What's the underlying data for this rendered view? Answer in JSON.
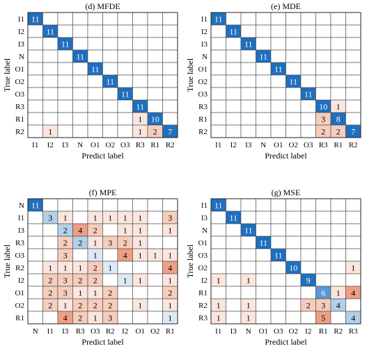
{
  "colors": {
    "diag_dark": "#1f6fbf",
    "blue_mid": "#5b97d4",
    "blue_light": "#b3cfe9",
    "blue_pale": "#dde9f5",
    "red_pale": "#fbe6df",
    "red_light": "#f6cdbd",
    "red_mid": "#ee9f84",
    "grid": "#444444"
  },
  "chart_data": [
    {
      "type": "heatmap",
      "title": "(d) MFDE",
      "xlabel": "Predict label",
      "ylabel": "True label",
      "row_labels": [
        "I1",
        "I2",
        "I3",
        "N",
        "O1",
        "O2",
        "O3",
        "R3",
        "R1",
        "R2"
      ],
      "col_labels": [
        "I1",
        "I2",
        "I3",
        "N",
        "O1",
        "O2",
        "O3",
        "R3",
        "R1",
        "R2"
      ],
      "matrix": [
        [
          11,
          0,
          0,
          0,
          0,
          0,
          0,
          0,
          0,
          0
        ],
        [
          0,
          11,
          0,
          0,
          0,
          0,
          0,
          0,
          0,
          0
        ],
        [
          0,
          0,
          11,
          0,
          0,
          0,
          0,
          0,
          0,
          0
        ],
        [
          0,
          0,
          0,
          11,
          0,
          0,
          0,
          0,
          0,
          0
        ],
        [
          0,
          0,
          0,
          0,
          11,
          0,
          0,
          0,
          0,
          0
        ],
        [
          0,
          0,
          0,
          0,
          0,
          11,
          0,
          0,
          0,
          0
        ],
        [
          0,
          0,
          0,
          0,
          0,
          0,
          11,
          0,
          0,
          0
        ],
        [
          0,
          0,
          0,
          0,
          0,
          0,
          0,
          11,
          0,
          0
        ],
        [
          0,
          0,
          0,
          0,
          0,
          0,
          0,
          1,
          10,
          0
        ],
        [
          0,
          1,
          0,
          0,
          0,
          0,
          0,
          1,
          2,
          7
        ]
      ]
    },
    {
      "type": "heatmap",
      "title": "(e) MDE",
      "xlabel": "Predict label",
      "ylabel": "True label",
      "row_labels": [
        "I1",
        "I2",
        "I3",
        "N",
        "O1",
        "O2",
        "O3",
        "R3",
        "R1",
        "R2"
      ],
      "col_labels": [
        "I1",
        "I2",
        "I3",
        "N",
        "O1",
        "O2",
        "O3",
        "R3",
        "R1",
        "R2"
      ],
      "matrix": [
        [
          11,
          0,
          0,
          0,
          0,
          0,
          0,
          0,
          0,
          0
        ],
        [
          0,
          11,
          0,
          0,
          0,
          0,
          0,
          0,
          0,
          0
        ],
        [
          0,
          0,
          11,
          0,
          0,
          0,
          0,
          0,
          0,
          0
        ],
        [
          0,
          0,
          0,
          11,
          0,
          0,
          0,
          0,
          0,
          0
        ],
        [
          0,
          0,
          0,
          0,
          11,
          0,
          0,
          0,
          0,
          0
        ],
        [
          0,
          0,
          0,
          0,
          0,
          11,
          0,
          0,
          0,
          0
        ],
        [
          0,
          0,
          0,
          0,
          0,
          0,
          11,
          0,
          0,
          0
        ],
        [
          0,
          0,
          0,
          0,
          0,
          0,
          0,
          10,
          1,
          0
        ],
        [
          0,
          0,
          0,
          0,
          0,
          0,
          0,
          3,
          8,
          0
        ],
        [
          0,
          0,
          0,
          0,
          0,
          0,
          0,
          2,
          2,
          7
        ]
      ]
    },
    {
      "type": "heatmap",
      "title": "(f) MPE",
      "xlabel": "Predict label",
      "ylabel": "True label",
      "row_labels": [
        "N",
        "I1",
        "I3",
        "R3",
        "O3",
        "R2",
        "I2",
        "O1",
        "O2",
        "R1"
      ],
      "col_labels": [
        "N",
        "I1",
        "I3",
        "R3",
        "O3",
        "R2",
        "I2",
        "O1",
        "O2",
        "R1"
      ],
      "matrix": [
        [
          11,
          0,
          0,
          0,
          0,
          0,
          0,
          0,
          0,
          0
        ],
        [
          0,
          3,
          1,
          0,
          1,
          1,
          1,
          1,
          0,
          3
        ],
        [
          0,
          0,
          2,
          4,
          2,
          0,
          1,
          1,
          0,
          1
        ],
        [
          0,
          0,
          2,
          2,
          1,
          3,
          2,
          1,
          0,
          0
        ],
        [
          0,
          0,
          3,
          0,
          1,
          0,
          4,
          1,
          1,
          1
        ],
        [
          0,
          1,
          1,
          1,
          2,
          1,
          0,
          0,
          0,
          4
        ],
        [
          0,
          2,
          3,
          2,
          2,
          0,
          1,
          1,
          0,
          1
        ],
        [
          0,
          2,
          3,
          1,
          1,
          2,
          0,
          0,
          0,
          2
        ],
        [
          0,
          2,
          1,
          2,
          2,
          2,
          0,
          1,
          0,
          1
        ],
        [
          0,
          0,
          4,
          2,
          1,
          3,
          0,
          0,
          0,
          1
        ]
      ]
    },
    {
      "type": "heatmap",
      "title": "(g) MSE",
      "xlabel": "Predict label",
      "ylabel": "True label",
      "row_labels": [
        "I1",
        "I3",
        "N",
        "O1",
        "O3",
        "O2",
        "I2",
        "R1",
        "R2",
        "R3"
      ],
      "col_labels": [
        "I1",
        "I3",
        "N",
        "O1",
        "O3",
        "O2",
        "I2",
        "R1",
        "R2",
        "R3"
      ],
      "matrix": [
        [
          11,
          0,
          0,
          0,
          0,
          0,
          0,
          0,
          0,
          0
        ],
        [
          0,
          11,
          0,
          0,
          0,
          0,
          0,
          0,
          0,
          0
        ],
        [
          0,
          0,
          11,
          0,
          0,
          0,
          0,
          0,
          0,
          0
        ],
        [
          0,
          0,
          0,
          11,
          0,
          0,
          0,
          0,
          0,
          0
        ],
        [
          0,
          0,
          0,
          0,
          11,
          0,
          0,
          0,
          0,
          0
        ],
        [
          0,
          0,
          0,
          0,
          0,
          10,
          0,
          0,
          0,
          1
        ],
        [
          1,
          0,
          1,
          0,
          0,
          0,
          9,
          0,
          0,
          0
        ],
        [
          0,
          0,
          0,
          0,
          0,
          0,
          0,
          6,
          1,
          4
        ],
        [
          1,
          0,
          1,
          0,
          0,
          0,
          2,
          3,
          4,
          0
        ],
        [
          1,
          0,
          1,
          0,
          0,
          0,
          0,
          5,
          0,
          4
        ]
      ]
    }
  ]
}
